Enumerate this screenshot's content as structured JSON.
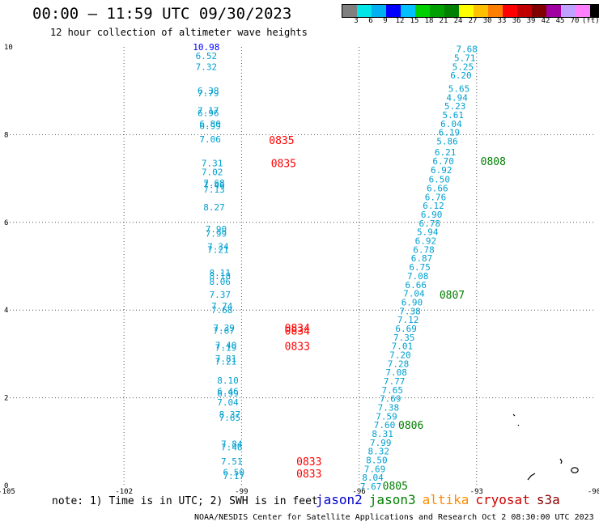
{
  "header": {
    "title": "00:00 – 11:59 UTC 09/30/2023",
    "subtitle": "12 hour collection of altimeter wave heights"
  },
  "scale": {
    "colors": [
      "#7f7f7f",
      "#00e5e5",
      "#00b0f0",
      "#0000ff",
      "#00c0ff",
      "#00d000",
      "#00a000",
      "#008000",
      "#ffff00",
      "#ffc000",
      "#ff8000",
      "#ff0000",
      "#c00000",
      "#800000",
      "#a000a0",
      "#c0a0ff",
      "#ff80ff",
      "#000000"
    ],
    "labels": [
      "3",
      "6",
      "9",
      "12",
      "15",
      "18",
      "21",
      "24",
      "27",
      "30",
      "33",
      "36",
      "39",
      "42",
      "45",
      "70"
    ],
    "unit": "(ft)"
  },
  "note": "note: 1) Time is in UTC; 2) SWH is in feet",
  "satellites": [
    {
      "name": "jason2",
      "color": "#0000cc"
    },
    {
      "name": "jason3",
      "color": "#008000"
    },
    {
      "name": "altika",
      "color": "#ff8c00"
    },
    {
      "name": "cryosat",
      "color": "#cc0000"
    },
    {
      "name": "s3a",
      "color": "#8b0000"
    }
  ],
  "footer": "NOAA/NESDIS Center for Satellite Applications and Research   Oct  2 08:30:00 UTC 2023",
  "chart_data": {
    "type": "scatter",
    "x_ticks": [
      -105,
      -102,
      -99,
      -96,
      -93,
      -90
    ],
    "x_tick_labels": [
      "-105",
      "-102",
      "-99",
      "-96",
      "-93",
      "-90"
    ],
    "y_ticks": [
      0,
      2,
      4,
      6,
      8,
      10
    ],
    "y_tick_labels": [
      "0",
      "2",
      "4",
      "6",
      "8",
      "10"
    ],
    "xlim": [
      -105,
      -90
    ],
    "ylim": [
      0,
      10
    ],
    "grid": true,
    "west_track": {
      "color": "#00a0d0",
      "points": [
        {
          "lon": -99.9,
          "lat": 10.0,
          "v": "10.98",
          "color": "#0000ff"
        },
        {
          "lon": -99.9,
          "lat": 9.8,
          "v": "6.52"
        },
        {
          "lon": -99.9,
          "lat": 9.55,
          "v": "7.32"
        },
        {
          "lon": -99.85,
          "lat": 9.0,
          "v": "6.38"
        },
        {
          "lon": -99.85,
          "lat": 8.95,
          "v": "7.79"
        },
        {
          "lon": -99.85,
          "lat": 8.55,
          "v": "7.17"
        },
        {
          "lon": -99.85,
          "lat": 8.5,
          "v": "6.96"
        },
        {
          "lon": -99.8,
          "lat": 8.25,
          "v": "6.80"
        },
        {
          "lon": -99.8,
          "lat": 8.2,
          "v": "6.99"
        },
        {
          "lon": -99.8,
          "lat": 7.9,
          "v": "7.06"
        },
        {
          "lon": -99.75,
          "lat": 7.35,
          "v": "7.31"
        },
        {
          "lon": -99.75,
          "lat": 7.15,
          "v": "7.02"
        },
        {
          "lon": -99.7,
          "lat": 6.9,
          "v": "7.68"
        },
        {
          "lon": -99.7,
          "lat": 6.85,
          "v": "7.46"
        },
        {
          "lon": -99.7,
          "lat": 6.75,
          "v": "7.13"
        },
        {
          "lon": -99.7,
          "lat": 6.35,
          "v": "8.27"
        },
        {
          "lon": -99.65,
          "lat": 5.85,
          "v": "7.90"
        },
        {
          "lon": -99.65,
          "lat": 5.75,
          "v": "7.99"
        },
        {
          "lon": -99.6,
          "lat": 5.45,
          "v": "7.34"
        },
        {
          "lon": -99.6,
          "lat": 5.38,
          "v": "7.21"
        },
        {
          "lon": -99.55,
          "lat": 4.85,
          "v": "8.11"
        },
        {
          "lon": -99.55,
          "lat": 4.78,
          "v": "8.18"
        },
        {
          "lon": -99.55,
          "lat": 4.65,
          "v": "8.06"
        },
        {
          "lon": -99.55,
          "lat": 4.35,
          "v": "7.37"
        },
        {
          "lon": -99.5,
          "lat": 4.1,
          "v": "7.74"
        },
        {
          "lon": -99.5,
          "lat": 4.0,
          "v": "7.68"
        },
        {
          "lon": -99.45,
          "lat": 3.6,
          "v": "7.39"
        },
        {
          "lon": -99.45,
          "lat": 3.53,
          "v": "7.67"
        },
        {
          "lon": -99.4,
          "lat": 3.2,
          "v": "7.40"
        },
        {
          "lon": -99.4,
          "lat": 3.15,
          "v": "7.19"
        },
        {
          "lon": -99.4,
          "lat": 2.9,
          "v": "7.81"
        },
        {
          "lon": -99.4,
          "lat": 2.83,
          "v": "7.21"
        },
        {
          "lon": -99.35,
          "lat": 2.4,
          "v": "8.10"
        },
        {
          "lon": -99.35,
          "lat": 2.15,
          "v": "6.46"
        },
        {
          "lon": -99.35,
          "lat": 2.1,
          "v": "6.99"
        },
        {
          "lon": -99.35,
          "lat": 1.9,
          "v": "7.04"
        },
        {
          "lon": -99.3,
          "lat": 1.62,
          "v": "8.37"
        },
        {
          "lon": -99.3,
          "lat": 1.55,
          "v": "7.65"
        },
        {
          "lon": -99.25,
          "lat": 0.95,
          "v": "7.84"
        },
        {
          "lon": -99.25,
          "lat": 0.88,
          "v": "7.46"
        },
        {
          "lon": -99.25,
          "lat": 0.55,
          "v": "7.51"
        },
        {
          "lon": -99.2,
          "lat": 0.3,
          "v": "6.50"
        },
        {
          "lon": -99.2,
          "lat": 0.22,
          "v": "7.17"
        }
      ]
    },
    "east_track": {
      "color": "#00a0d0",
      "points": [
        {
          "lon": -93.25,
          "lat": 9.95,
          "v": "7.68"
        },
        {
          "lon": -93.3,
          "lat": 9.75,
          "v": "5.71"
        },
        {
          "lon": -93.35,
          "lat": 9.55,
          "v": "5.25"
        },
        {
          "lon": -93.4,
          "lat": 9.35,
          "v": "6.20"
        },
        {
          "lon": -93.45,
          "lat": 9.05,
          "v": "5.65"
        },
        {
          "lon": -93.5,
          "lat": 8.85,
          "v": "4.94"
        },
        {
          "lon": -93.55,
          "lat": 8.65,
          "v": "5.23"
        },
        {
          "lon": -93.6,
          "lat": 8.45,
          "v": "5.61"
        },
        {
          "lon": -93.65,
          "lat": 8.25,
          "v": "6.04"
        },
        {
          "lon": -93.7,
          "lat": 8.05,
          "v": "6.19"
        },
        {
          "lon": -93.75,
          "lat": 7.85,
          "v": "5.86"
        },
        {
          "lon": -93.8,
          "lat": 7.6,
          "v": "6.21"
        },
        {
          "lon": -93.85,
          "lat": 7.4,
          "v": "6.70"
        },
        {
          "lon": -93.9,
          "lat": 7.2,
          "v": "6.92"
        },
        {
          "lon": -93.95,
          "lat": 6.98,
          "v": "6.50"
        },
        {
          "lon": -94.0,
          "lat": 6.78,
          "v": "6.66"
        },
        {
          "lon": -94.05,
          "lat": 6.58,
          "v": "6.76"
        },
        {
          "lon": -94.1,
          "lat": 6.38,
          "v": "6.12"
        },
        {
          "lon": -94.15,
          "lat": 6.18,
          "v": "6.90"
        },
        {
          "lon": -94.2,
          "lat": 5.98,
          "v": "6.78"
        },
        {
          "lon": -94.25,
          "lat": 5.78,
          "v": "5.94"
        },
        {
          "lon": -94.3,
          "lat": 5.58,
          "v": "6.92"
        },
        {
          "lon": -94.35,
          "lat": 5.38,
          "v": "6.78"
        },
        {
          "lon": -94.4,
          "lat": 5.18,
          "v": "6.87"
        },
        {
          "lon": -94.45,
          "lat": 4.98,
          "v": "6.75"
        },
        {
          "lon": -94.5,
          "lat": 4.78,
          "v": "7.08"
        },
        {
          "lon": -94.55,
          "lat": 4.58,
          "v": "6.66"
        },
        {
          "lon": -94.6,
          "lat": 4.38,
          "v": "7.04"
        },
        {
          "lon": -94.65,
          "lat": 4.18,
          "v": "6.90"
        },
        {
          "lon": -94.7,
          "lat": 3.98,
          "v": "7.38"
        },
        {
          "lon": -94.75,
          "lat": 3.78,
          "v": "7.12"
        },
        {
          "lon": -94.8,
          "lat": 3.58,
          "v": "6.69"
        },
        {
          "lon": -94.85,
          "lat": 3.38,
          "v": "7.35"
        },
        {
          "lon": -94.9,
          "lat": 3.18,
          "v": "7.01"
        },
        {
          "lon": -94.95,
          "lat": 2.98,
          "v": "7.20"
        },
        {
          "lon": -95.0,
          "lat": 2.78,
          "v": "7.28"
        },
        {
          "lon": -95.05,
          "lat": 2.58,
          "v": "7.08"
        },
        {
          "lon": -95.1,
          "lat": 2.38,
          "v": "7.77"
        },
        {
          "lon": -95.15,
          "lat": 2.18,
          "v": "7.65"
        },
        {
          "lon": -95.2,
          "lat": 1.98,
          "v": "7.69"
        },
        {
          "lon": -95.25,
          "lat": 1.78,
          "v": "7.38"
        },
        {
          "lon": -95.3,
          "lat": 1.58,
          "v": "7.59"
        },
        {
          "lon": -95.35,
          "lat": 1.38,
          "v": "7.60"
        },
        {
          "lon": -95.4,
          "lat": 1.18,
          "v": "8.31"
        },
        {
          "lon": -95.45,
          "lat": 0.98,
          "v": "7.99"
        },
        {
          "lon": -95.5,
          "lat": 0.78,
          "v": "8.32"
        },
        {
          "lon": -95.55,
          "lat": 0.58,
          "v": "8.50"
        },
        {
          "lon": -95.6,
          "lat": 0.38,
          "v": "7.69"
        },
        {
          "lon": -95.65,
          "lat": 0.18,
          "v": "8.04"
        },
        {
          "lon": -95.7,
          "lat": -0.02,
          "v": "7.67"
        }
      ]
    },
    "time_labels": [
      {
        "lon": -98.3,
        "lat": 7.88,
        "t": "0835",
        "color": "#ff0000"
      },
      {
        "lon": -98.25,
        "lat": 7.35,
        "t": "0835",
        "color": "#ff0000"
      },
      {
        "lon": -97.9,
        "lat": 3.6,
        "t": "0834",
        "color": "#ff0000"
      },
      {
        "lon": -97.9,
        "lat": 3.53,
        "t": "0834",
        "color": "#ff0000"
      },
      {
        "lon": -97.9,
        "lat": 3.18,
        "t": "0833",
        "color": "#ff0000"
      },
      {
        "lon": -97.6,
        "lat": 0.55,
        "t": "0833",
        "color": "#ff0000"
      },
      {
        "lon": -97.6,
        "lat": 0.28,
        "t": "0833",
        "color": "#ff0000"
      },
      {
        "lon": -92.9,
        "lat": 7.4,
        "t": "0808",
        "color": "#008000"
      },
      {
        "lon": -93.95,
        "lat": 4.35,
        "t": "0807",
        "color": "#008000"
      },
      {
        "lon": -95.0,
        "lat": 1.38,
        "t": "0806",
        "color": "#008000"
      },
      {
        "lon": -95.4,
        "lat": 0.0,
        "t": "0805",
        "color": "#008000"
      }
    ]
  }
}
